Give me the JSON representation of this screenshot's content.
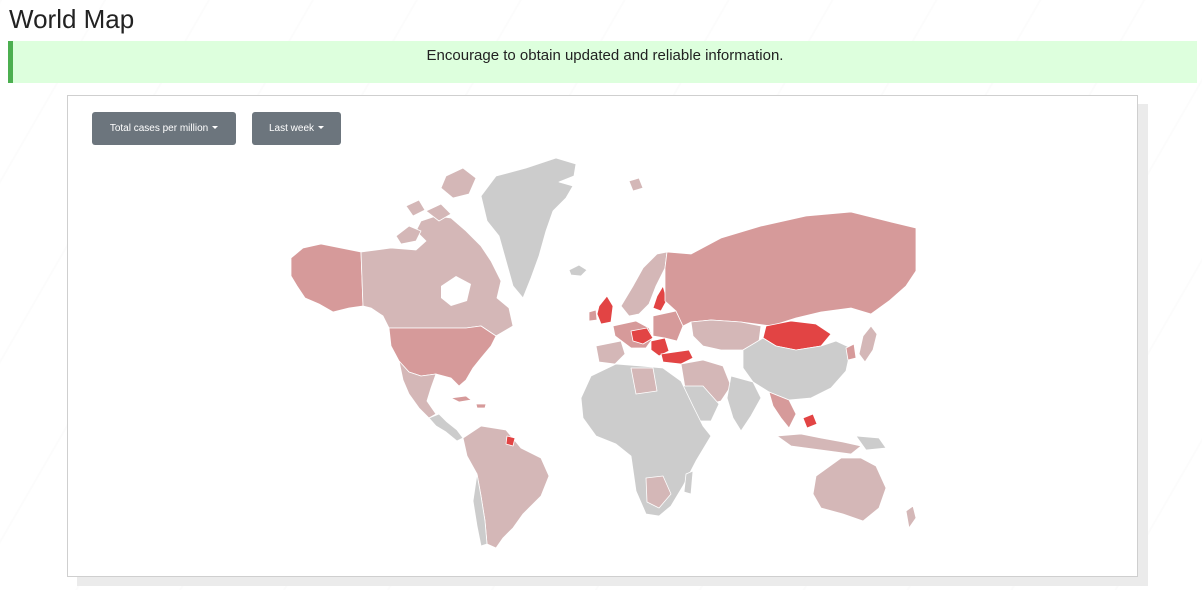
{
  "page": {
    "title": "World Map"
  },
  "alert": {
    "message": "Encourage to obtain updated and reliable information."
  },
  "controls": {
    "metric_selected": "Total cases per million",
    "period_selected": "Last week"
  },
  "colors": {
    "no_data": "#cccccc",
    "low": "#d4b7b7",
    "mid": "#d69a9a",
    "high": "#e24444",
    "alert_bg": "#ddffdd",
    "alert_border": "#4caf50",
    "button_bg": "#6c757d"
  }
}
